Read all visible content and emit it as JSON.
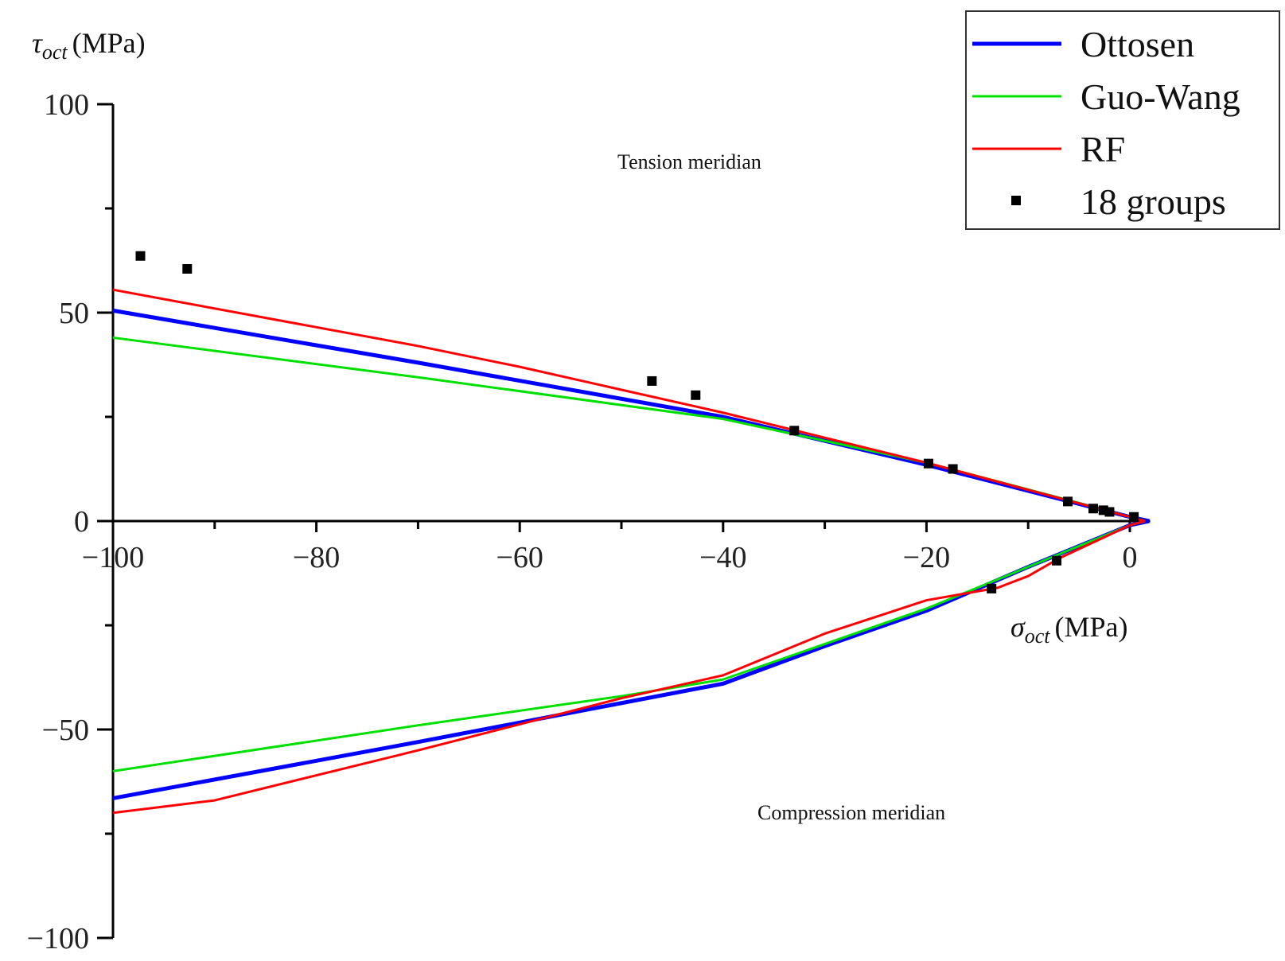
{
  "chart_data": {
    "type": "line",
    "title": "",
    "xlabel": "σoct (MPa)",
    "xlabel_sym": "σ",
    "xlabel_sub": "oct",
    "xlabel_unit": "(MPa)",
    "ylabel": "τoct (MPa)",
    "ylabel_sym": "τ",
    "ylabel_sub": "oct",
    "ylabel_unit": "(MPa)",
    "xlim": [
      -100,
      2
    ],
    "ylim": [
      -100,
      100
    ],
    "xticks": [
      -100,
      -80,
      -60,
      -40,
      -20,
      0
    ],
    "xtick_labels": [
      "−100",
      "−80",
      "−60",
      "−40",
      "−20",
      "0"
    ],
    "yticks": [
      100,
      50,
      0,
      -50,
      -100
    ],
    "ytick_labels": [
      "100",
      "50",
      "0",
      "−50",
      "−100"
    ],
    "annotations": {
      "tension": "Tension meridian",
      "compression": "Compression meridian"
    },
    "legend_position": "top-right",
    "series": [
      {
        "name": "Ottosen",
        "color": "#0000ff",
        "kind": "line",
        "tension": [
          [
            -100,
            50.5
          ],
          [
            -70,
            38
          ],
          [
            -40,
            25
          ],
          [
            -20,
            13.5
          ],
          [
            0,
            1
          ],
          [
            1.9,
            0
          ]
        ],
        "compression": [
          [
            -100,
            -66.5
          ],
          [
            -70,
            -53
          ],
          [
            -40,
            -39
          ],
          [
            -30,
            -30
          ],
          [
            -20,
            -21.5
          ],
          [
            -10,
            -11
          ],
          [
            0,
            -1
          ],
          [
            1.9,
            0
          ]
        ]
      },
      {
        "name": "Guo-Wang",
        "color": "#00e000",
        "kind": "line",
        "tension": [
          [
            -100,
            44
          ],
          [
            -70,
            34.5
          ],
          [
            -40,
            24.5
          ],
          [
            -20,
            14
          ],
          [
            -6,
            5
          ],
          [
            0,
            1
          ],
          [
            1.5,
            0
          ]
        ],
        "compression": [
          [
            -100,
            -60
          ],
          [
            -70,
            -49
          ],
          [
            -50,
            -42
          ],
          [
            -40,
            -38
          ],
          [
            -20,
            -21
          ],
          [
            -10,
            -11
          ],
          [
            0,
            -1
          ],
          [
            1.5,
            0
          ]
        ]
      },
      {
        "name": "RF",
        "color": "#ff0000",
        "kind": "line",
        "tension": [
          [
            -100,
            55.5
          ],
          [
            -70,
            42
          ],
          [
            -60,
            37
          ],
          [
            -40,
            26
          ],
          [
            -20,
            14
          ],
          [
            0,
            1
          ],
          [
            1.5,
            0
          ]
        ],
        "compression": [
          [
            -100,
            -70
          ],
          [
            -90,
            -67
          ],
          [
            -70,
            -55
          ],
          [
            -50,
            -42.5
          ],
          [
            -40,
            -37
          ],
          [
            -30,
            -27
          ],
          [
            -20,
            -19
          ],
          [
            -13,
            -16
          ],
          [
            -10,
            -13.2
          ],
          [
            -7,
            -9
          ],
          [
            0,
            -1
          ],
          [
            1.5,
            0
          ]
        ]
      },
      {
        "name": "18 groups",
        "color": "#000000",
        "kind": "scatter",
        "points": [
          [
            -97.3,
            63.6
          ],
          [
            -92.7,
            60.5
          ],
          [
            -47,
            33.6
          ],
          [
            -42.7,
            30.2
          ],
          [
            -33,
            21.7
          ],
          [
            -19.8,
            13.8
          ],
          [
            -17.4,
            12.5
          ],
          [
            -6.1,
            4.7
          ],
          [
            -3.6,
            3
          ],
          [
            -2.6,
            2.6
          ],
          [
            -2,
            2.2
          ],
          [
            0.4,
            1
          ],
          [
            -13.6,
            -16.2
          ],
          [
            -7.2,
            -9.5
          ]
        ]
      }
    ]
  }
}
